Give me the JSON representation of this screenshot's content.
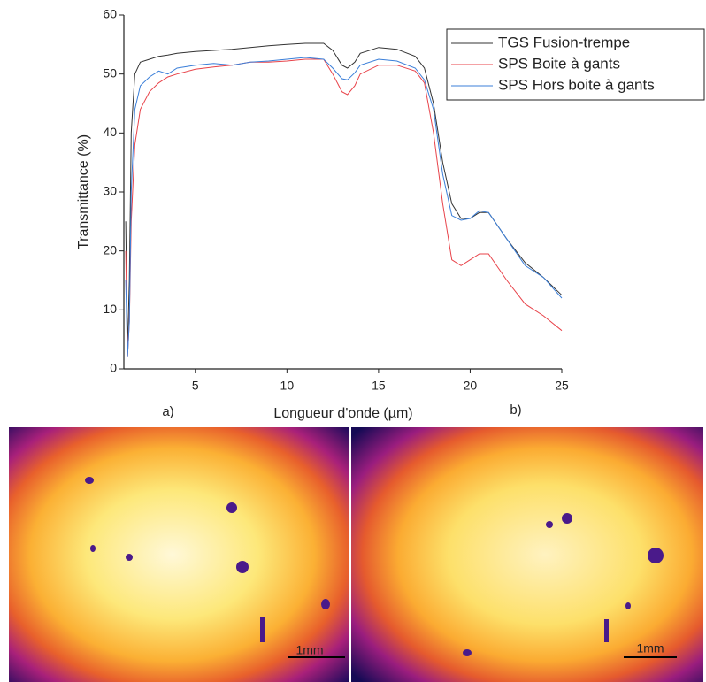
{
  "chart_data": {
    "type": "line",
    "xlabel": "Longueur d'onde (µm)",
    "ylabel": "Transmittance (%)",
    "x": [
      1.2,
      1.3,
      1.4,
      1.5,
      1.7,
      2,
      2.5,
      3,
      3.5,
      4,
      5,
      6,
      7,
      8,
      9,
      10,
      11,
      12,
      12.5,
      13,
      13.3,
      13.7,
      14,
      15,
      16,
      17,
      17.5,
      18,
      18.5,
      19,
      19.5,
      20,
      20.5,
      21,
      22,
      23,
      24,
      25
    ],
    "series": [
      {
        "name": "TGS Fusion-trempe",
        "color": "#333333",
        "values": [
          25,
          3,
          15,
          40,
          50,
          52,
          52.5,
          53,
          53.2,
          53.5,
          53.8,
          54,
          54.2,
          54.5,
          54.8,
          55,
          55.2,
          55.2,
          54,
          51.5,
          51,
          52,
          53.5,
          54.5,
          54.2,
          53,
          51,
          45,
          35,
          28,
          25.5,
          25.5,
          26.5,
          26.5,
          22,
          18,
          15.5,
          12.5
        ]
      },
      {
        "name": "SPS Boite à gants",
        "color": "#e8434a",
        "values": [
          20,
          2,
          8,
          25,
          38,
          44,
          47,
          48.5,
          49.5,
          50,
          50.8,
          51.2,
          51.5,
          52,
          52,
          52.2,
          52.5,
          52.5,
          50,
          47,
          46.5,
          48,
          50,
          51.5,
          51.5,
          50.5,
          48.5,
          40,
          28,
          18.5,
          17.5,
          18.5,
          19.5,
          19.5,
          15,
          11,
          9,
          6.5
        ]
      },
      {
        "name": "SPS Hors boite à gants",
        "color": "#3b7fd9",
        "values": [
          15,
          2,
          8,
          30,
          44,
          48,
          49.5,
          50.5,
          50,
          51,
          51.5,
          51.8,
          51.5,
          52,
          52.2,
          52.5,
          52.8,
          52.5,
          51,
          49.2,
          49,
          50.2,
          51.5,
          52.5,
          52.2,
          51,
          49,
          44,
          33,
          26,
          25.2,
          25.5,
          26.8,
          26.5,
          22,
          17.5,
          15.5,
          12
        ]
      }
    ],
    "xlim": [
      1.1,
      25
    ],
    "ylim": [
      0,
      60
    ],
    "xticks": [
      5,
      10,
      15,
      20,
      25
    ],
    "yticks": [
      0,
      10,
      20,
      30,
      40,
      50,
      60
    ],
    "grid": false,
    "legend": "upper right"
  },
  "panels": [
    {
      "label": "a)",
      "scale_bar": "1mm"
    },
    {
      "label": "b)",
      "scale_bar": "1mm"
    }
  ]
}
